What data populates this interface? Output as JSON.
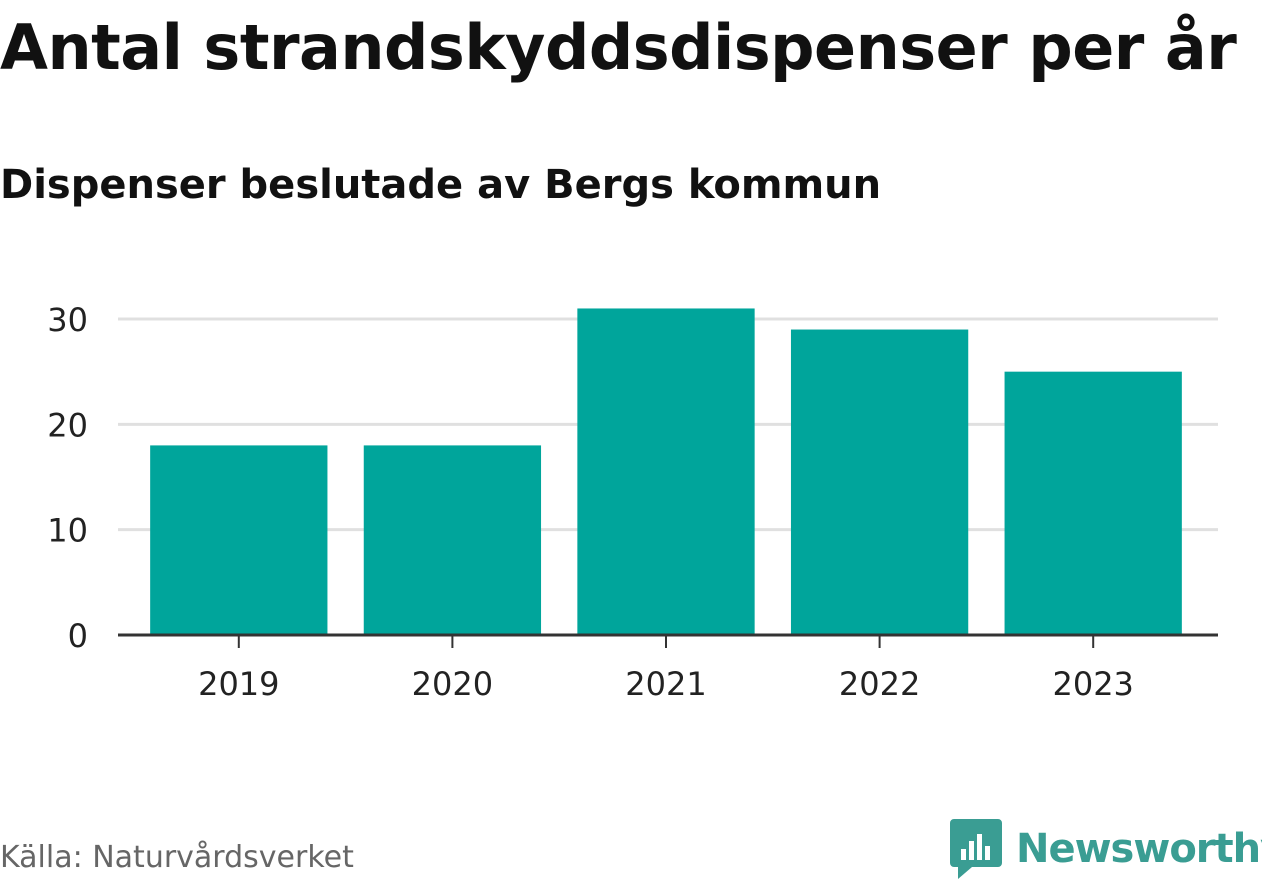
{
  "chart_data": {
    "type": "bar",
    "title": "Antal strandskyddsdispenser per år",
    "subtitle": "Dispenser beslutade av Bergs kommun",
    "categories": [
      "2019",
      "2020",
      "2021",
      "2022",
      "2023"
    ],
    "values": [
      18,
      18,
      31,
      29,
      25
    ],
    "xlabel": "",
    "ylabel": "",
    "ylim": [
      0,
      33
    ],
    "yticks": [
      0,
      10,
      20,
      30
    ],
    "grid": true,
    "legend": "none",
    "bar_color": "#00a59b",
    "grid_color": "#e0e0e0",
    "axis_color": "#333333"
  },
  "footer": {
    "source": "Källa: Naturvårdsverket",
    "brand": "Newsworthy",
    "brand_color": "#3a9d93",
    "brand_icon": "bar-chart-pin-icon"
  }
}
